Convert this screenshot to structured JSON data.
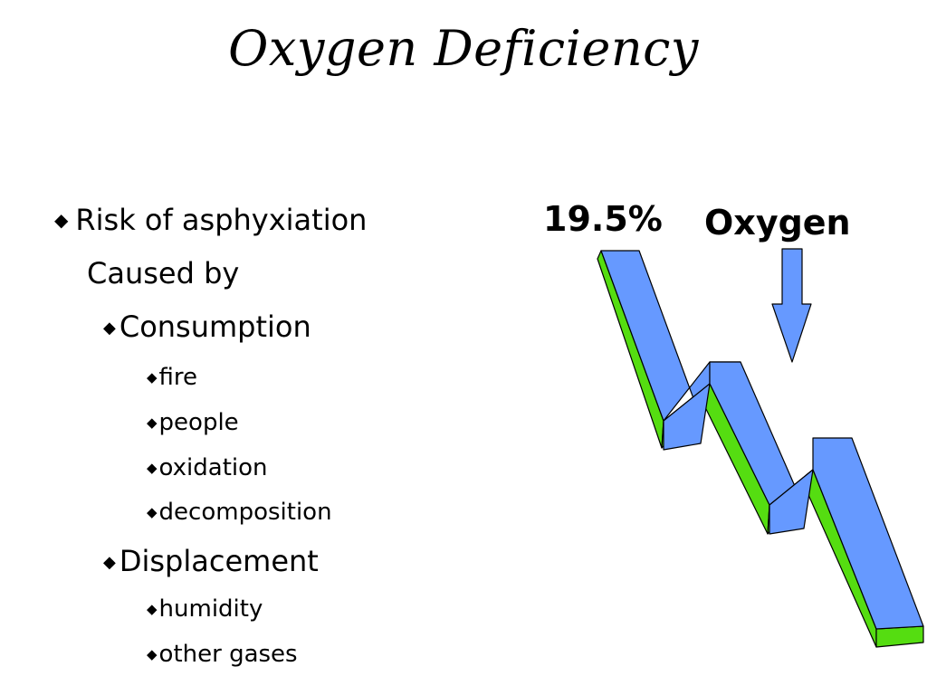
{
  "title": "Oxygen Deficiency",
  "bullets": [
    {
      "level": 1,
      "marker": true,
      "text": "Risk of asphyxiation"
    },
    {
      "level": 1,
      "marker": false,
      "text": "Caused by"
    },
    {
      "level": 2,
      "marker": true,
      "text": "Consumption"
    },
    {
      "level": 3,
      "marker": true,
      "text": "fire"
    },
    {
      "level": 3,
      "marker": true,
      "text": "people"
    },
    {
      "level": 3,
      "marker": true,
      "text": "oxidation"
    },
    {
      "level": 3,
      "marker": true,
      "text": "decomposition"
    },
    {
      "level": 2,
      "marker": true,
      "text": "Displacement"
    },
    {
      "level": 3,
      "marker": true,
      "text": "humidity"
    },
    {
      "level": 3,
      "marker": true,
      "text": "other gases"
    }
  ],
  "graphic": {
    "percent_label": "19.5%",
    "oxygen_label": "Oxygen",
    "icon": "downward-zigzag-arrow",
    "colors": {
      "ribbon_face": "#6699ff",
      "ribbon_side": "#55dd11",
      "arrow_fill": "#6699ff",
      "outline": "#000000"
    }
  }
}
